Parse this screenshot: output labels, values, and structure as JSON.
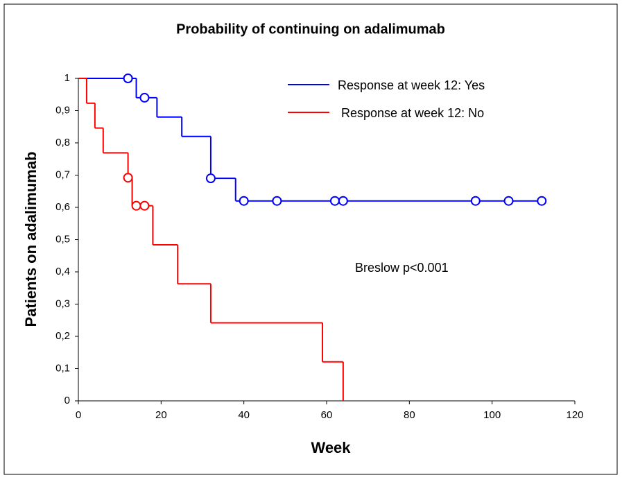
{
  "chart_data": {
    "type": "step",
    "title": "Probability of continuing on adalimumab",
    "x_label": "Week",
    "y_label": "Patients on adalimumab",
    "annotation": "Breslow  p<0.001",
    "xlim": [
      0,
      120
    ],
    "xticks": [
      0,
      20,
      40,
      60,
      80,
      100,
      120
    ],
    "ylim": [
      0,
      1
    ],
    "yticks": [
      0,
      {
        "value": 0.1,
        "label": "0,1"
      },
      {
        "value": 0.2,
        "label": "0,2"
      },
      {
        "value": 0.3,
        "label": "0,3"
      },
      {
        "value": 0.4,
        "label": "0,4"
      },
      {
        "value": 0.5,
        "label": "0,5"
      },
      {
        "value": 0.6,
        "label": "0,6"
      },
      {
        "value": 0.7,
        "label": "0,7"
      },
      {
        "value": 0.8,
        "label": "0,8"
      },
      {
        "value": 0.9,
        "label": "0,9"
      },
      1
    ],
    "series": [
      {
        "name": "Response at week 12: Yes",
        "color": "#0000ff",
        "x": [
          0,
          14,
          19,
          25,
          32,
          38,
          112
        ],
        "values": [
          1,
          0.94,
          0.88,
          0.82,
          0.69,
          0.62,
          0.62
        ],
        "censored_x": [
          12,
          16,
          32,
          40,
          48,
          62,
          64,
          96,
          104,
          112
        ],
        "censored_values": [
          1,
          0.94,
          0.69,
          0.62,
          0.62,
          0.62,
          0.62,
          0.62,
          0.62,
          0.62
        ]
      },
      {
        "name": "Response at week 12: No",
        "color": "#ff0000",
        "x": [
          0,
          2,
          4,
          6,
          12,
          13,
          18,
          24,
          32,
          59,
          64
        ],
        "values": [
          1,
          0.923,
          0.846,
          0.769,
          0.692,
          0.605,
          0.484,
          0.363,
          0.242,
          0.121,
          0
        ],
        "censored_x": [
          12,
          14,
          16
        ],
        "censored_values": [
          0.692,
          0.605,
          0.605
        ]
      }
    ]
  }
}
